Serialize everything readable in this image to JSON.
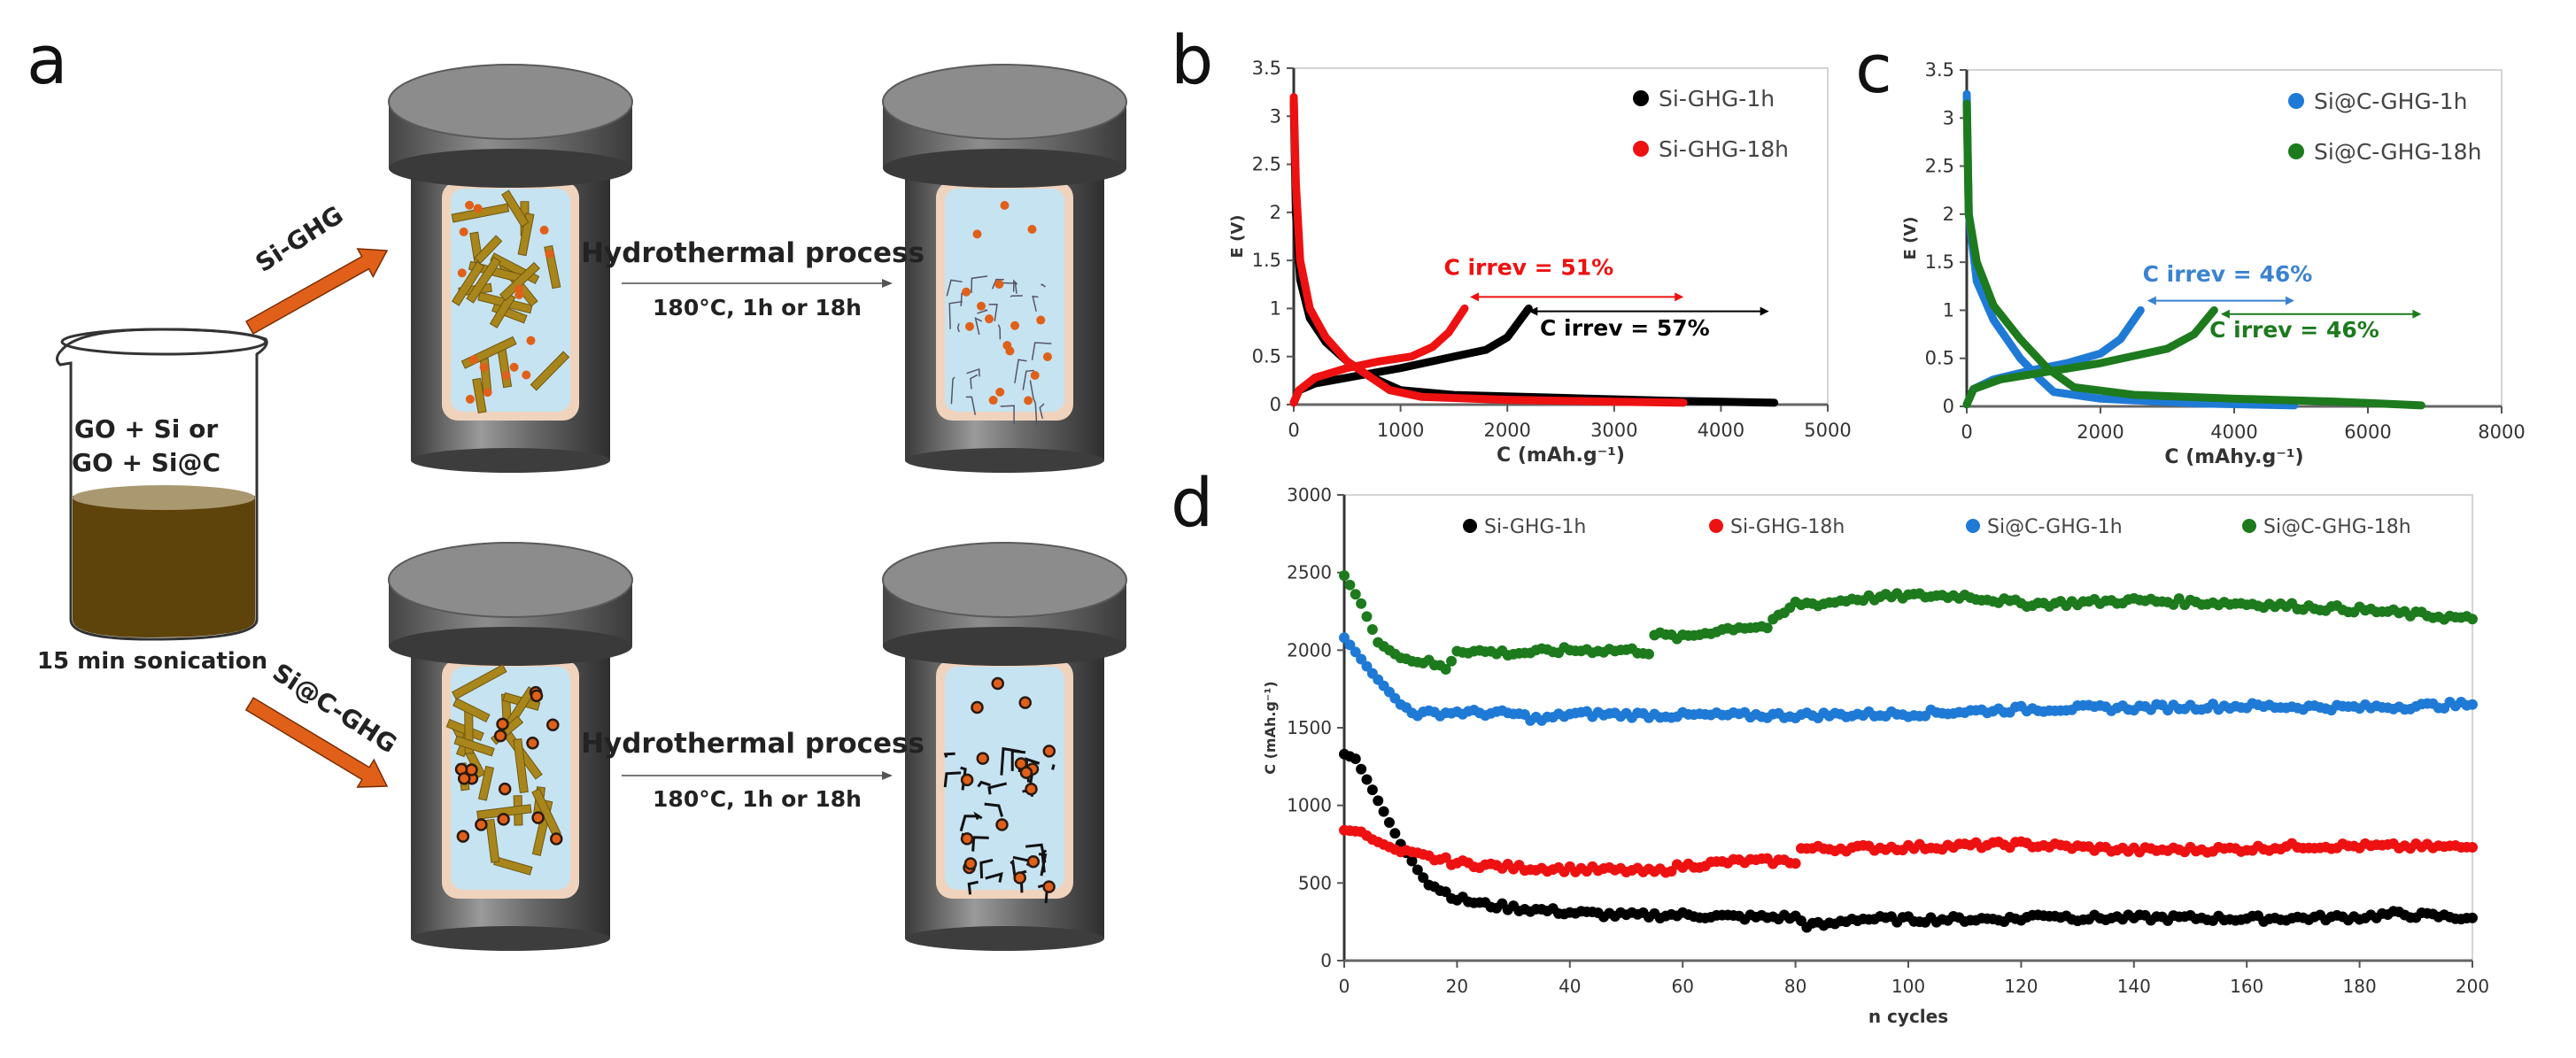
{
  "panels": {
    "a": "a",
    "b": "b",
    "c": "c",
    "d": "d"
  },
  "schematic": {
    "beaker_line1": "GO + Si or",
    "beaker_line2": "GO + Si@C",
    "sonication": "15 min sonication",
    "route_top": "Si-GHG",
    "route_bottom": "Si@C-GHG",
    "process_top": "Hydrothermal process",
    "conditions_top": "180°C, 1h or 18h",
    "process_bottom": "Hydrothermal process",
    "conditions_bottom": "180°C, 1h or 18h",
    "colors": {
      "arrow": "#e0601a",
      "liquid": "#5e430a",
      "sheet": "#a8861c",
      "particle": "#e0601a",
      "vessel": "#555555",
      "inner": "#c6e3f2",
      "liner": "#f0d3bd"
    }
  },
  "chart_data": [
    {
      "id": "b",
      "type": "line",
      "xlabel": "C (mAh.g⁻¹)",
      "ylabel": "E (V)",
      "xlim": [
        0,
        5000
      ],
      "ylim": [
        0,
        3.5
      ],
      "xticks": [
        "0",
        "1000",
        "2000",
        "3000",
        "4000",
        "5000"
      ],
      "yticks": [
        "0",
        "0.5",
        "1",
        "1.5",
        "2",
        "2.5",
        "3",
        "3.5"
      ],
      "legend": "top-right",
      "series": [
        {
          "name": "Si-GHG-1h",
          "color": "#000000",
          "discharge": [
            [
              0,
              3.15
            ],
            [
              20,
              2.0
            ],
            [
              60,
              1.3
            ],
            [
              150,
              0.9
            ],
            [
              300,
              0.65
            ],
            [
              500,
              0.45
            ],
            [
              700,
              0.3
            ],
            [
              1000,
              0.15
            ],
            [
              1500,
              0.1
            ],
            [
              2500,
              0.07
            ],
            [
              3500,
              0.04
            ],
            [
              4500,
              0.02
            ]
          ],
          "charge": [
            [
              0,
              0.02
            ],
            [
              50,
              0.15
            ],
            [
              200,
              0.22
            ],
            [
              500,
              0.28
            ],
            [
              1000,
              0.38
            ],
            [
              1500,
              0.5
            ],
            [
              1800,
              0.57
            ],
            [
              2000,
              0.7
            ],
            [
              2100,
              0.85
            ],
            [
              2200,
              1.0
            ]
          ]
        },
        {
          "name": "Si-GHG-18h",
          "color": "#ee1111",
          "discharge": [
            [
              0,
              3.2
            ],
            [
              20,
              2.3
            ],
            [
              60,
              1.5
            ],
            [
              150,
              1.0
            ],
            [
              300,
              0.7
            ],
            [
              500,
              0.45
            ],
            [
              700,
              0.3
            ],
            [
              900,
              0.15
            ],
            [
              1200,
              0.08
            ],
            [
              2000,
              0.05
            ],
            [
              3000,
              0.03
            ],
            [
              3650,
              0.02
            ]
          ],
          "charge": [
            [
              0,
              0.02
            ],
            [
              50,
              0.15
            ],
            [
              200,
              0.28
            ],
            [
              500,
              0.38
            ],
            [
              800,
              0.45
            ],
            [
              1100,
              0.5
            ],
            [
              1300,
              0.6
            ],
            [
              1450,
              0.75
            ],
            [
              1600,
              1.0
            ]
          ]
        }
      ],
      "annotations": [
        {
          "text": "C irrev = 51%",
          "color": "#ee1111",
          "x_from": 1650,
          "x_to": 3650,
          "y": 1.12,
          "text_x": 2200,
          "text_y": 1.35
        },
        {
          "text": "C irrev = 57%",
          "color": "#000000",
          "x_from": 2200,
          "x_to": 4450,
          "y": 0.97,
          "text_x": 3100,
          "text_y": 0.72
        }
      ]
    },
    {
      "id": "c",
      "type": "line",
      "xlabel": "C (mAhy.g⁻¹)",
      "ylabel": "E (V)",
      "xlim": [
        0,
        8000
      ],
      "ylim": [
        0,
        3.5
      ],
      "xticks": [
        "0",
        "2000",
        "4000",
        "6000",
        "8000"
      ],
      "yticks": [
        "0",
        "0.5",
        "1",
        "1.5",
        "2",
        "2.5",
        "3",
        "3.5"
      ],
      "legend": "top-right",
      "series": [
        {
          "name": "Si@C-GHG-1h",
          "color": "#1f7ad6",
          "discharge": [
            [
              0,
              3.25
            ],
            [
              30,
              2.0
            ],
            [
              150,
              1.3
            ],
            [
              400,
              0.9
            ],
            [
              800,
              0.5
            ],
            [
              1100,
              0.28
            ],
            [
              1300,
              0.15
            ],
            [
              2000,
              0.08
            ],
            [
              3500,
              0.03
            ],
            [
              4900,
              0.01
            ]
          ],
          "charge": [
            [
              0,
              0.02
            ],
            [
              100,
              0.18
            ],
            [
              400,
              0.28
            ],
            [
              1000,
              0.38
            ],
            [
              1500,
              0.45
            ],
            [
              2000,
              0.55
            ],
            [
              2300,
              0.7
            ],
            [
              2600,
              1.0
            ]
          ]
        },
        {
          "name": "Si@C-GHG-18h",
          "color": "#1d7a1d",
          "discharge": [
            [
              0,
              3.15
            ],
            [
              30,
              2.0
            ],
            [
              150,
              1.5
            ],
            [
              400,
              1.05
            ],
            [
              800,
              0.7
            ],
            [
              1200,
              0.4
            ],
            [
              1600,
              0.2
            ],
            [
              2500,
              0.12
            ],
            [
              4000,
              0.08
            ],
            [
              5500,
              0.05
            ],
            [
              6800,
              0.01
            ]
          ],
          "charge": [
            [
              0,
              0.02
            ],
            [
              100,
              0.18
            ],
            [
              500,
              0.28
            ],
            [
              1200,
              0.36
            ],
            [
              2000,
              0.45
            ],
            [
              3000,
              0.6
            ],
            [
              3400,
              0.75
            ],
            [
              3700,
              1.0
            ]
          ]
        }
      ],
      "annotations": [
        {
          "text": "C irrev = 46%",
          "color": "#3b82d0",
          "x_from": 2700,
          "x_to": 4900,
          "y": 1.1,
          "text_x": 3900,
          "text_y": 1.3
        },
        {
          "text": "C irrev = 46%",
          "color": "#1d7a1d",
          "x_from": 3800,
          "x_to": 6800,
          "y": 0.96,
          "text_x": 4900,
          "text_y": 0.72
        }
      ]
    },
    {
      "id": "d",
      "type": "scatter",
      "xlabel": "n cycles",
      "ylabel": "C (mAh.g⁻¹)",
      "xlim": [
        0,
        200
      ],
      "ylim": [
        0,
        3000
      ],
      "xticks": [
        "0",
        "20",
        "40",
        "60",
        "80",
        "100",
        "120",
        "140",
        "160",
        "180",
        "200"
      ],
      "yticks": [
        "0",
        "500",
        "1000",
        "1500",
        "2000",
        "2500",
        "3000"
      ],
      "legend": "top",
      "series": [
        {
          "name": "Si-GHG-1h",
          "color": "#000000",
          "points": [
            [
              0,
              1330
            ],
            [
              2,
              1300
            ],
            [
              5,
              1100
            ],
            [
              10,
              750
            ],
            [
              15,
              500
            ],
            [
              20,
              400
            ],
            [
              25,
              360
            ],
            [
              30,
              340
            ],
            [
              40,
              310
            ],
            [
              50,
              290
            ],
            [
              60,
              295
            ],
            [
              70,
              280
            ],
            [
              80,
              280
            ],
            [
              82,
              230
            ],
            [
              86,
              230
            ],
            [
              90,
              270
            ],
            [
              100,
              265
            ],
            [
              120,
              270
            ],
            [
              124,
              300
            ],
            [
              130,
              275
            ],
            [
              150,
              275
            ],
            [
              160,
              270
            ],
            [
              180,
              280
            ],
            [
              186,
              300
            ],
            [
              200,
              275
            ]
          ]
        },
        {
          "name": "Si-GHG-18h",
          "color": "#ee1111",
          "points": [
            [
              0,
              840
            ],
            [
              3,
              830
            ],
            [
              5,
              780
            ],
            [
              10,
              700
            ],
            [
              20,
              630
            ],
            [
              30,
              600
            ],
            [
              40,
              590
            ],
            [
              50,
              580
            ],
            [
              55,
              570
            ],
            [
              60,
              610
            ],
            [
              70,
              640
            ],
            [
              80,
              640
            ],
            [
              81,
              720
            ],
            [
              100,
              730
            ],
            [
              120,
              750
            ],
            [
              140,
              710
            ],
            [
              160,
              720
            ],
            [
              170,
              740
            ],
            [
              200,
              730
            ]
          ]
        },
        {
          "name": "Si@C-GHG-1h",
          "color": "#1f7ad6",
          "points": [
            [
              0,
              2080
            ],
            [
              5,
              1850
            ],
            [
              10,
              1650
            ],
            [
              13,
              1590
            ],
            [
              20,
              1600
            ],
            [
              30,
              1590
            ],
            [
              35,
              1550
            ],
            [
              40,
              1590
            ],
            [
              60,
              1580
            ],
            [
              80,
              1580
            ],
            [
              100,
              1590
            ],
            [
              120,
              1620
            ],
            [
              140,
              1630
            ],
            [
              160,
              1640
            ],
            [
              180,
              1630
            ],
            [
              200,
              1650
            ]
          ]
        },
        {
          "name": "Si@C-GHG-18h",
          "color": "#1d7a1d",
          "points": [
            [
              0,
              2480
            ],
            [
              3,
              2300
            ],
            [
              6,
              2050
            ],
            [
              10,
              1950
            ],
            [
              15,
              1920
            ],
            [
              18,
              1880
            ],
            [
              20,
              2000
            ],
            [
              30,
              1980
            ],
            [
              40,
              2000
            ],
            [
              50,
              2000
            ],
            [
              54,
              1990
            ],
            [
              55,
              2100
            ],
            [
              60,
              2080
            ],
            [
              65,
              2120
            ],
            [
              70,
              2150
            ],
            [
              75,
              2150
            ],
            [
              80,
              2300
            ],
            [
              85,
              2300
            ],
            [
              90,
              2330
            ],
            [
              100,
              2350
            ],
            [
              110,
              2350
            ],
            [
              120,
              2300
            ],
            [
              125,
              2300
            ],
            [
              140,
              2320
            ],
            [
              160,
              2300
            ],
            [
              180,
              2260
            ],
            [
              200,
              2200
            ]
          ]
        }
      ]
    }
  ]
}
